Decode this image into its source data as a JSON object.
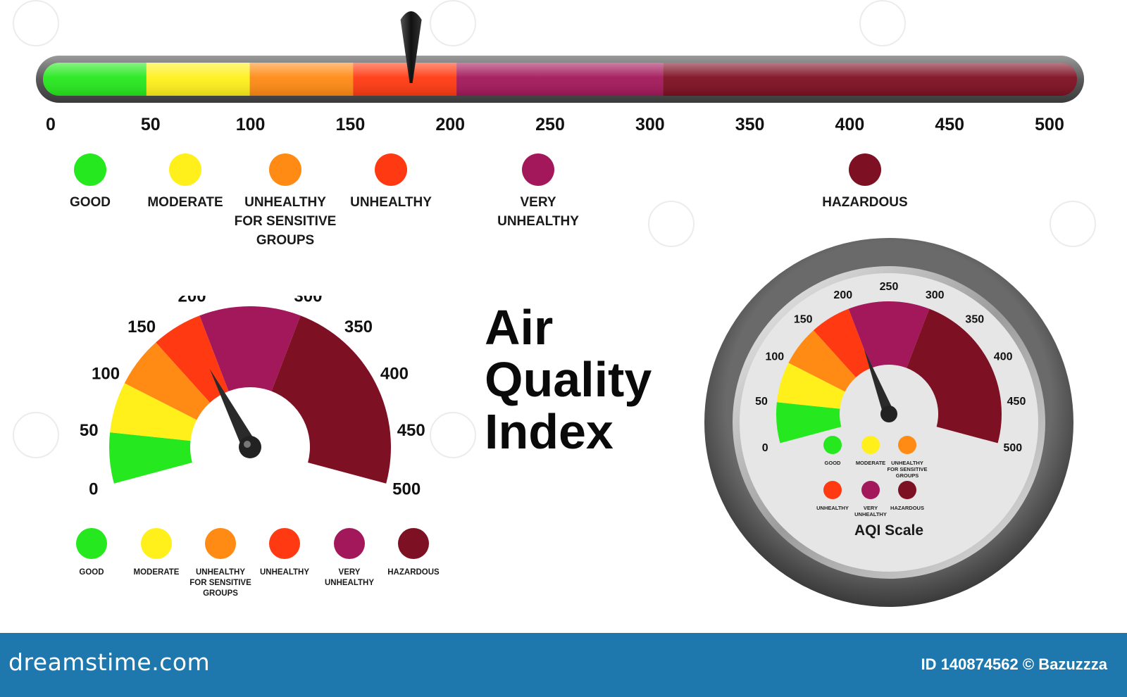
{
  "colors": {
    "good": "#26e81e",
    "moderate": "#fff01c",
    "sensitive": "#ff8a14",
    "unhealthy": "#ff3a12",
    "very_unhealthy": "#a3185a",
    "hazardous": "#7d1022",
    "footer": "#1e77ad"
  },
  "bar": {
    "ticks": [
      "0",
      "50",
      "100",
      "150",
      "200",
      "250",
      "300",
      "350",
      "400",
      "450",
      "500"
    ],
    "pointer_value": 178,
    "legend": [
      {
        "label": "GOOD",
        "color": "#26e81e"
      },
      {
        "label": "MODERATE",
        "color": "#fff01c"
      },
      {
        "label": "UNHEALTHY\nFOR SENSITIVE\nGROUPS",
        "color": "#ff8a14"
      },
      {
        "label": "UNHEALTHY",
        "color": "#ff3a12"
      },
      {
        "label": "VERY\nUNHEALTHY",
        "color": "#a3185a"
      },
      {
        "label": "HAZARDOUS",
        "color": "#7d1022"
      }
    ]
  },
  "title": "Air\nQuality\nIndex",
  "left_gauge": {
    "ticks": [
      "0",
      "50",
      "100",
      "150",
      "200",
      "250",
      "300",
      "350",
      "400",
      "450",
      "500"
    ],
    "needle_value": 185,
    "legend": [
      {
        "label": "GOOD",
        "color": "#26e81e"
      },
      {
        "label": "MODERATE",
        "color": "#fff01c"
      },
      {
        "label": "UNHEALTHY\nFOR SENSITIVE\nGROUPS",
        "color": "#ff8a14"
      },
      {
        "label": "UNHEALTHY",
        "color": "#ff3a12"
      },
      {
        "label": "VERY\nUNHEALTHY",
        "color": "#a3185a"
      },
      {
        "label": "HAZARDOUS",
        "color": "#7d1022"
      }
    ]
  },
  "right_gauge": {
    "ticks": [
      "0",
      "50",
      "100",
      "150",
      "200",
      "250",
      "300",
      "350",
      "400",
      "450",
      "500"
    ],
    "needle_value": 200,
    "legend": [
      {
        "label": "GOOD",
        "color": "#26e81e"
      },
      {
        "label": "MODERATE",
        "color": "#fff01c"
      },
      {
        "label": "UNHEALTHY\nFOR SENSITIVE\nGROUPS",
        "color": "#ff8a14"
      },
      {
        "label": "UNHEALTHY",
        "color": "#ff3a12"
      },
      {
        "label": "VERY\nUNHEALTHY",
        "color": "#a3185a"
      },
      {
        "label": "HAZARDOUS",
        "color": "#7d1022"
      }
    ],
    "caption": "AQI Scale"
  },
  "footer": {
    "logo": "dreamstime.com",
    "id_text": "ID 140874562 © Bazuzzza"
  }
}
